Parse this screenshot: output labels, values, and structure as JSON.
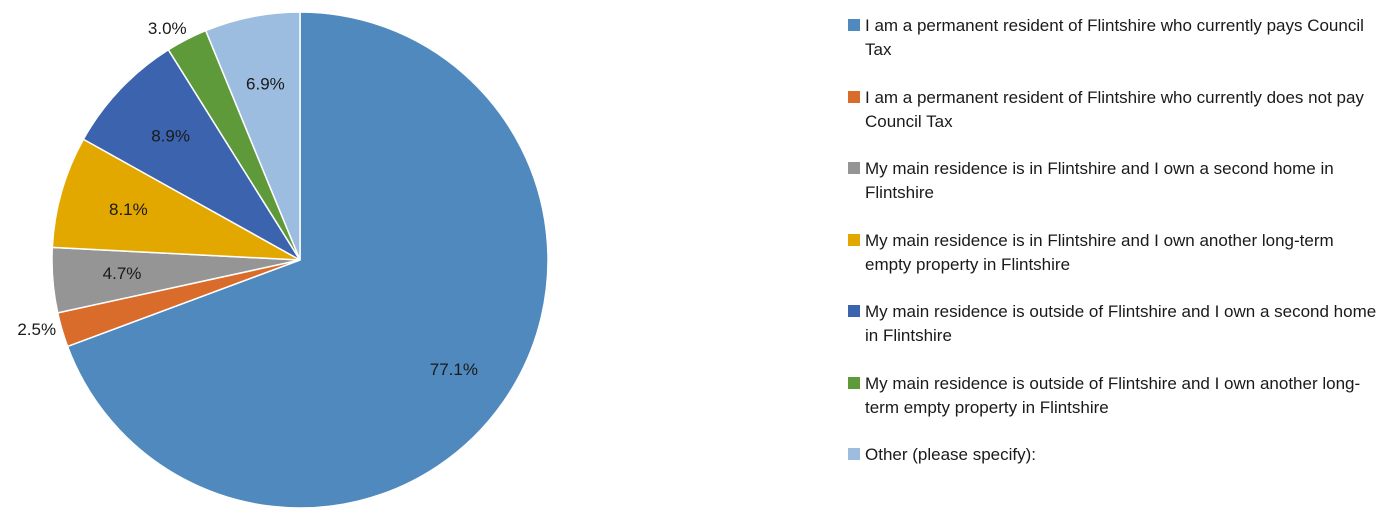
{
  "chart_data": {
    "type": "pie",
    "title": "",
    "categories": [
      "I am a permanent resident of Flintshire who currently pays Council Tax",
      "I am a permanent resident of Flintshire who currently does not pay Council Tax",
      "My main residence is in Flintshire and I own a second home in Flintshire",
      "My main residence is in Flintshire and I own another long-term empty property in Flintshire",
      "My main residence is outside of Flintshire and I own a second home in Flintshire",
      "My main residence is outside of Flintshire and I own another long-term empty property in Flintshire",
      "Other (please specify):"
    ],
    "values": [
      77.1,
      2.5,
      4.7,
      8.1,
      8.9,
      3.0,
      6.9
    ],
    "labels": [
      "77.1%",
      "2.5%",
      "4.7%",
      "8.1%",
      "8.9%",
      "3.0%",
      "6.9%"
    ],
    "colors": [
      "#4f89bd",
      "#d96c2a",
      "#959595",
      "#e3a800",
      "#3b63ae",
      "#5e9a3a",
      "#9dbde0"
    ],
    "start_angle_deg": 0,
    "direction": "clockwise",
    "legend_position": "right"
  }
}
